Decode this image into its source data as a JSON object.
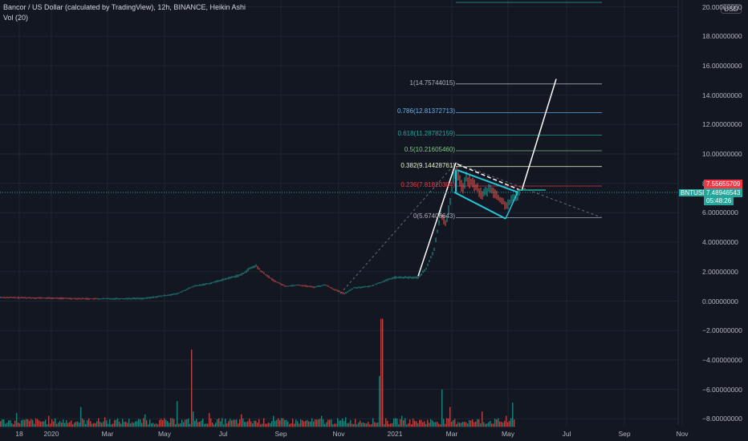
{
  "header": {
    "title": "Bancor / US Dollar (calculated by TradingView), 12h, BINANCE, Heikin Ashi",
    "volume": "Vol (20)"
  },
  "currency": "USD",
  "symbol": {
    "ticker": "BNTUSD",
    "price": "7.48946543",
    "countdown": "05:48:26",
    "level_price": "7.55655709"
  },
  "fib_labels": [
    {
      "text": "1(14.75744015)",
      "value": 14.75744015,
      "color": "#b2b5be"
    },
    {
      "text": "0.786(12.81372713)",
      "value": 12.81372713,
      "color": "#64b5f6"
    },
    {
      "text": "0.618(11.28782159)",
      "value": 11.28782159,
      "color": "#26a69a"
    },
    {
      "text": "0.5(10.21605460)",
      "value": 10.2160546,
      "color": "#81c784"
    },
    {
      "text": "0.382(9.14428761)",
      "value": 9.14428761,
      "color": "#e8f5c8"
    },
    {
      "text": "0.236(7.81820304)",
      "value": 7.81820304,
      "color": "#f23645"
    },
    {
      "text": "0(5.67406643)",
      "value": 5.67406643,
      "color": "#b2b5be"
    }
  ],
  "colors": {
    "up": "#26a69a",
    "down": "#ef5350",
    "grid": "#1f2430",
    "bg": "#131722"
  },
  "chart_data": {
    "type": "line",
    "style": "heikin-ashi candles with volume",
    "x": [
      "18",
      "2020",
      "Mar",
      "May",
      "Jul",
      "Sep",
      "Nov",
      "2021",
      "Mar",
      "May",
      "Jul",
      "Sep",
      "Nov"
    ],
    "ylim": [
      -8.6,
      20.3
    ],
    "y_ticks": [
      "20.00000000",
      "18.00000000",
      "16.00000000",
      "14.00000000",
      "12.00000000",
      "10.00000000",
      "8.00000000",
      "6.00000000",
      "4.00000000",
      "2.00000000",
      "0.00000000",
      "−2.00000000",
      "−4.00000000",
      "−6.00000000",
      "−8.00000000"
    ],
    "y_tick_values": [
      20,
      18,
      16,
      14,
      12,
      10,
      8,
      6,
      4,
      2,
      0,
      -2,
      -4,
      -6,
      -8
    ],
    "series": [
      {
        "values": [
          [
            0,
            0.25
          ],
          [
            60,
            0.2
          ],
          [
            120,
            0.15
          ],
          [
            180,
            0.18
          ],
          [
            220,
            0.5
          ],
          [
            240,
            1.0
          ],
          [
            260,
            1.2
          ],
          [
            280,
            1.5
          ],
          [
            300,
            1.8
          ],
          [
            310,
            2.2
          ],
          [
            318,
            2.4
          ],
          [
            325,
            2.0
          ],
          [
            340,
            1.4
          ],
          [
            355,
            1.0
          ],
          [
            370,
            1.1
          ],
          [
            390,
            0.95
          ],
          [
            405,
            1.1
          ],
          [
            415,
            0.8
          ],
          [
            428,
            0.5
          ],
          [
            440,
            0.9
          ],
          [
            460,
            1.0
          ],
          [
            475,
            1.3
          ],
          [
            490,
            1.6
          ],
          [
            505,
            1.6
          ],
          [
            520,
            1.6
          ],
          [
            530,
            2.2
          ],
          [
            540,
            3.5
          ],
          [
            548,
            6.0
          ],
          [
            555,
            5.2
          ],
          [
            560,
            6.8
          ],
          [
            565,
            8.8
          ],
          [
            570,
            8.6
          ],
          [
            575,
            7.6
          ],
          [
            580,
            8.3
          ],
          [
            590,
            7.9
          ],
          [
            600,
            7.2
          ],
          [
            610,
            7.7
          ],
          [
            620,
            7.0
          ],
          [
            630,
            6.5
          ],
          [
            640,
            7.0
          ],
          [
            648,
            7.49
          ]
        ]
      }
    ],
    "volume": [
      [
        20,
        -7.6
      ],
      [
        60,
        -7.8
      ],
      [
        100,
        -7.2
      ],
      [
        130,
        -7.9
      ],
      [
        180,
        -7.7
      ],
      [
        220,
        -6.8
      ],
      [
        238,
        -3.3
      ],
      [
        240,
        -7.5
      ],
      [
        260,
        -7.6
      ],
      [
        300,
        -7.7
      ],
      [
        340,
        -7.8
      ],
      [
        400,
        -7.8
      ],
      [
        430,
        -7.9
      ],
      [
        473,
        -5.1
      ],
      [
        475,
        -1.2
      ],
      [
        500,
        -7.8
      ],
      [
        550,
        -6.0
      ],
      [
        560,
        -7.2
      ],
      [
        600,
        -7.5
      ],
      [
        630,
        -7.8
      ],
      [
        638,
        -6.9
      ]
    ]
  }
}
